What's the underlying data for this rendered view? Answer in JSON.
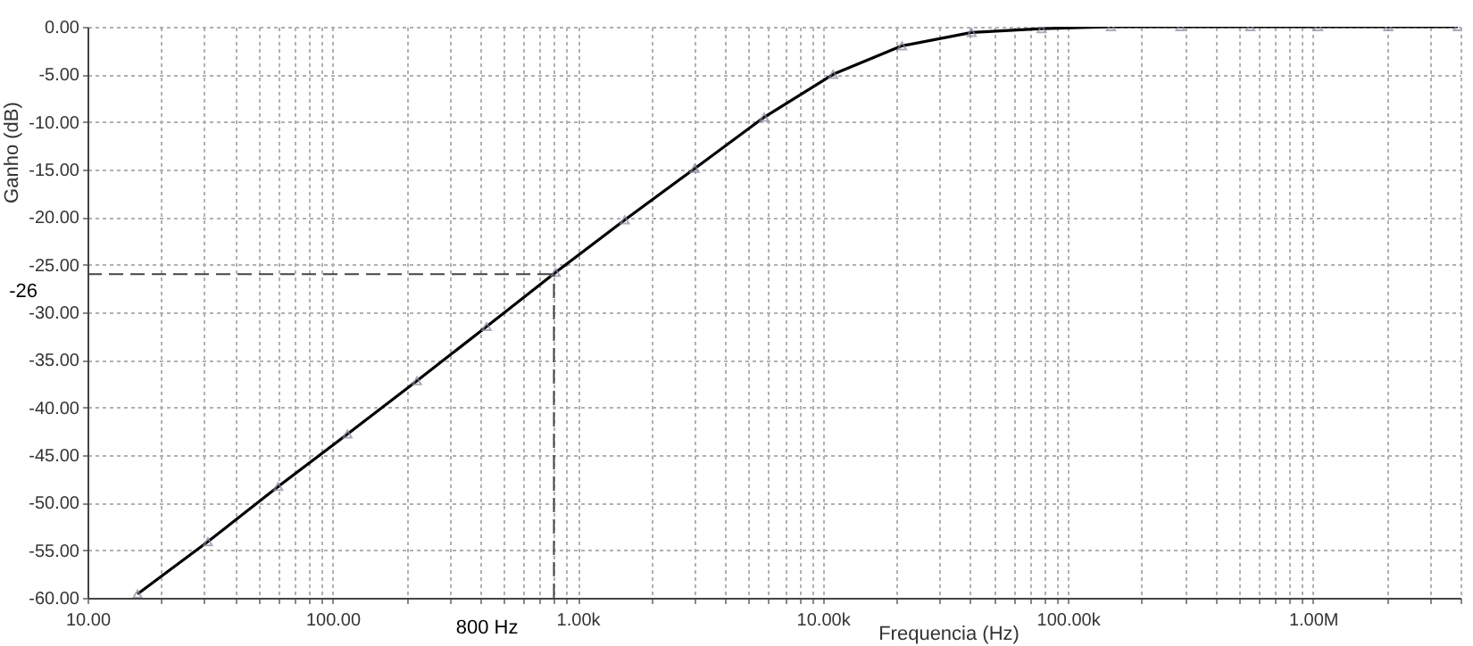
{
  "chart_data": {
    "type": "line",
    "xlabel": "Frequencia (Hz)",
    "ylabel": "Ganho (dB)",
    "log": "x",
    "grid": true,
    "marker": "triangle",
    "line_style": "solid",
    "xlim": [
      10,
      4000000
    ],
    "ylim": [
      -60,
      0
    ],
    "xticks": [
      {
        "value": 10,
        "label": "10.00"
      },
      {
        "value": 20,
        "label": null
      },
      {
        "value": 30,
        "label": null
      },
      {
        "value": 40,
        "label": null
      },
      {
        "value": 50,
        "label": null
      },
      {
        "value": 60,
        "label": null
      },
      {
        "value": 70,
        "label": null
      },
      {
        "value": 80,
        "label": null
      },
      {
        "value": 90,
        "label": null
      },
      {
        "value": 100,
        "label": "100.00"
      },
      {
        "value": 200,
        "label": null
      },
      {
        "value": 300,
        "label": null
      },
      {
        "value": 400,
        "label": null
      },
      {
        "value": 500,
        "label": null
      },
      {
        "value": 600,
        "label": null
      },
      {
        "value": 700,
        "label": null
      },
      {
        "value": 800,
        "label": null
      },
      {
        "value": 900,
        "label": null
      },
      {
        "value": 1000,
        "label": "1.00k"
      },
      {
        "value": 2000,
        "label": null
      },
      {
        "value": 3000,
        "label": null
      },
      {
        "value": 4000,
        "label": null
      },
      {
        "value": 5000,
        "label": null
      },
      {
        "value": 6000,
        "label": null
      },
      {
        "value": 7000,
        "label": null
      },
      {
        "value": 8000,
        "label": null
      },
      {
        "value": 9000,
        "label": null
      },
      {
        "value": 10000,
        "label": "10.00k"
      },
      {
        "value": 20000,
        "label": null
      },
      {
        "value": 30000,
        "label": null
      },
      {
        "value": 40000,
        "label": null
      },
      {
        "value": 50000,
        "label": null
      },
      {
        "value": 60000,
        "label": null
      },
      {
        "value": 70000,
        "label": null
      },
      {
        "value": 80000,
        "label": null
      },
      {
        "value": 90000,
        "label": null
      },
      {
        "value": 100000,
        "label": "100.00k"
      },
      {
        "value": 200000,
        "label": null
      },
      {
        "value": 300000,
        "label": null
      },
      {
        "value": 400000,
        "label": null
      },
      {
        "value": 500000,
        "label": null
      },
      {
        "value": 600000,
        "label": null
      },
      {
        "value": 700000,
        "label": null
      },
      {
        "value": 800000,
        "label": null
      },
      {
        "value": 900000,
        "label": null
      },
      {
        "value": 1000000,
        "label": "1.00M"
      },
      {
        "value": 2000000,
        "label": null
      },
      {
        "value": 3000000,
        "label": null
      },
      {
        "value": 4000000,
        "label": null
      }
    ],
    "yticks": [
      {
        "value": 0,
        "label": "0.00"
      },
      {
        "value": -5,
        "label": "-5.00"
      },
      {
        "value": -10,
        "label": "-10.00"
      },
      {
        "value": -15,
        "label": "-15.00"
      },
      {
        "value": -20,
        "label": "-20.00"
      },
      {
        "value": -25,
        "label": "-25.00"
      },
      {
        "value": -30,
        "label": "-30.00"
      },
      {
        "value": -35,
        "label": "-35.00"
      },
      {
        "value": -40,
        "label": "-40.00"
      },
      {
        "value": -45,
        "label": "-45.00"
      },
      {
        "value": -50,
        "label": "-50.00"
      },
      {
        "value": -55,
        "label": "-55.00"
      },
      {
        "value": -60,
        "label": "-60.00"
      }
    ],
    "series": [
      {
        "color": "#000000",
        "x": [
          16,
          31,
          60,
          115,
          221,
          425,
          813,
          1556,
          3000,
          5770,
          11020,
          21060,
          40500,
          78200,
          150000,
          288000,
          555000,
          1050000,
          2030000,
          3900000
        ],
        "values": [
          -59.6,
          -54.1,
          -48.3,
          -42.8,
          -37.2,
          -31.5,
          -25.8,
          -20.3,
          -14.9,
          -9.5,
          -5.0,
          -2.0,
          -0.6,
          -0.2,
          0,
          0,
          0,
          0,
          0,
          0
        ]
      }
    ],
    "ref_lines": [
      {
        "axis": "y",
        "value": -26,
        "label": "-26",
        "line_style": "dashed",
        "color": "#444444"
      },
      {
        "axis": "x",
        "value": 800,
        "label": "800 Hz",
        "line_style": "dashed",
        "color": "#444444"
      }
    ]
  }
}
